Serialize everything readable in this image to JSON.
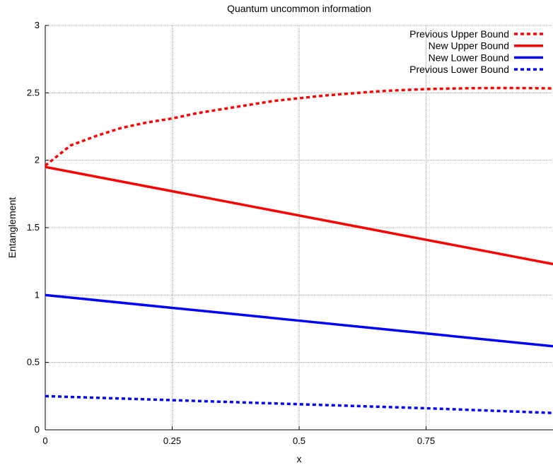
{
  "chart_data": {
    "type": "line",
    "title": "Quantum uncommon information",
    "xlabel": "x",
    "ylabel": "Entanglement",
    "xlim": [
      0,
      1
    ],
    "ylim": [
      0,
      3
    ],
    "xticks": [
      0,
      0.25,
      0.5,
      0.75
    ],
    "xtick_labels": [
      "0",
      "0.25",
      "0.5",
      "0.75"
    ],
    "yticks": [
      0,
      0.5,
      1,
      1.5,
      2,
      2.5,
      3
    ],
    "ytick_labels": [
      "0",
      "0.5",
      "1",
      "1.5",
      "2",
      "2.5",
      "3"
    ],
    "grid": true,
    "legend_position": "top-right",
    "series": [
      {
        "name": "Previous Upper Bound",
        "color": "#ff0000",
        "style": "dashed",
        "x": [
          0,
          0.05,
          0.1,
          0.15,
          0.2,
          0.25,
          0.3,
          0.35,
          0.4,
          0.45,
          0.5,
          0.55,
          0.6,
          0.65,
          0.7,
          0.75,
          0.8,
          0.85,
          0.9,
          0.95,
          1.0
        ],
        "y": [
          1.96,
          2.11,
          2.18,
          2.24,
          2.28,
          2.31,
          2.35,
          2.38,
          2.41,
          2.44,
          2.46,
          2.48,
          2.495,
          2.51,
          2.52,
          2.528,
          2.532,
          2.535,
          2.536,
          2.535,
          2.533
        ]
      },
      {
        "name": "New Upper Bound",
        "color": "#ff0000",
        "style": "solid",
        "x": [
          0,
          0.25,
          0.5,
          0.75,
          1.0
        ],
        "y": [
          1.95,
          1.77,
          1.59,
          1.41,
          1.23
        ]
      },
      {
        "name": "New Lower Bound",
        "color": "#0000ff",
        "style": "solid",
        "x": [
          0,
          0.25,
          0.5,
          0.75,
          1.0
        ],
        "y": [
          1.0,
          0.905,
          0.81,
          0.715,
          0.62
        ]
      },
      {
        "name": "Previous Lower Bound",
        "color": "#0000ff",
        "style": "dashed",
        "x": [
          0,
          0.25,
          0.5,
          0.75,
          1.0
        ],
        "y": [
          0.25,
          0.22,
          0.19,
          0.16,
          0.125
        ]
      }
    ]
  }
}
